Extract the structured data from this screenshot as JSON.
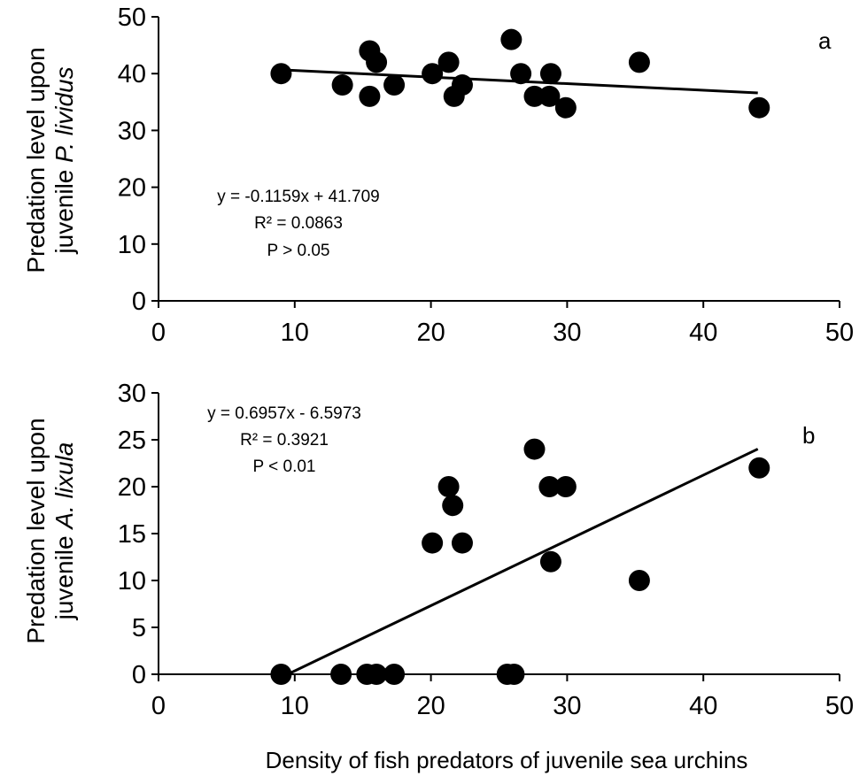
{
  "chart_data": [
    {
      "type": "scatter",
      "panel_label": "a",
      "ylabel_parts": [
        "Predation level upon",
        "juvenile ",
        "P. lividus"
      ],
      "xlim": [
        0,
        50
      ],
      "ylim": [
        0,
        50
      ],
      "x_ticks": [
        "0",
        "10",
        "20",
        "30",
        "40",
        "50"
      ],
      "y_ticks": [
        "0",
        "10",
        "20",
        "30",
        "40",
        "50"
      ],
      "annotation": [
        "y = -0.1159x + 41.709",
        "R² = 0.0863",
        "P > 0.05"
      ],
      "trendline": {
        "slope": -0.1159,
        "intercept": 41.709,
        "x_range": [
          9,
          44
        ]
      },
      "points": [
        {
          "x": 9,
          "y": 40
        },
        {
          "x": 13.5,
          "y": 38
        },
        {
          "x": 15.5,
          "y": 44
        },
        {
          "x": 16,
          "y": 42
        },
        {
          "x": 15.5,
          "y": 36
        },
        {
          "x": 17.3,
          "y": 38
        },
        {
          "x": 20.1,
          "y": 40
        },
        {
          "x": 21.3,
          "y": 42
        },
        {
          "x": 21.7,
          "y": 36
        },
        {
          "x": 22.3,
          "y": 38
        },
        {
          "x": 25.9,
          "y": 46
        },
        {
          "x": 26.6,
          "y": 40
        },
        {
          "x": 27.6,
          "y": 36
        },
        {
          "x": 28.8,
          "y": 40
        },
        {
          "x": 28.7,
          "y": 36
        },
        {
          "x": 29.9,
          "y": 34
        },
        {
          "x": 35.3,
          "y": 42
        },
        {
          "x": 44.1,
          "y": 34
        }
      ]
    },
    {
      "type": "scatter",
      "panel_label": "b",
      "ylabel_parts": [
        "Predation level upon",
        "juvenile ",
        "A. lixula"
      ],
      "xlabel": "Density of fish predators of juvenile sea urchins",
      "xlim": [
        0,
        50
      ],
      "ylim": [
        0,
        30
      ],
      "x_ticks": [
        "0",
        "10",
        "20",
        "30",
        "40",
        "50"
      ],
      "y_ticks": [
        "0",
        "5",
        "10",
        "15",
        "20",
        "25",
        "30"
      ],
      "annotation": [
        "y = 0.6957x - 6.5973",
        "R² = 0.3921",
        "P < 0.01"
      ],
      "trendline": {
        "slope": 0.6957,
        "intercept": -6.5973,
        "x_range": [
          9,
          44
        ]
      },
      "points": [
        {
          "x": 9,
          "y": 0
        },
        {
          "x": 13.4,
          "y": 0
        },
        {
          "x": 15.3,
          "y": 0
        },
        {
          "x": 16,
          "y": 0
        },
        {
          "x": 17.3,
          "y": 0
        },
        {
          "x": 20.1,
          "y": 14
        },
        {
          "x": 21.3,
          "y": 20
        },
        {
          "x": 21.6,
          "y": 18
        },
        {
          "x": 22.3,
          "y": 14
        },
        {
          "x": 25.6,
          "y": 0
        },
        {
          "x": 26.1,
          "y": 0
        },
        {
          "x": 27.6,
          "y": 24
        },
        {
          "x": 28.7,
          "y": 20
        },
        {
          "x": 28.8,
          "y": 12
        },
        {
          "x": 29.9,
          "y": 20
        },
        {
          "x": 35.3,
          "y": 10
        },
        {
          "x": 44.1,
          "y": 22
        }
      ]
    }
  ]
}
